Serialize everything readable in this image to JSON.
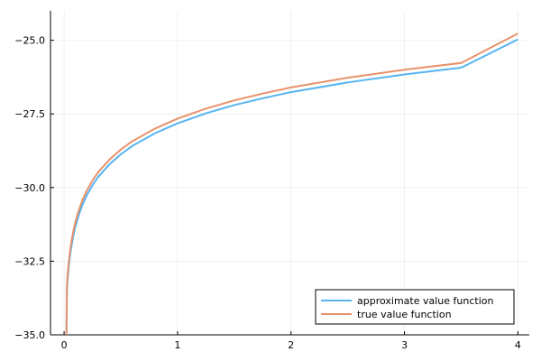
{
  "chart_data": {
    "type": "line",
    "title": "",
    "xlabel": "",
    "ylabel": "",
    "xlim": [
      -0.12,
      4.1
    ],
    "ylim": [
      -35.0,
      -24.0
    ],
    "x_ticks": [
      0,
      1,
      2,
      3,
      4
    ],
    "x_tick_labels": [
      "0",
      "1",
      "2",
      "3",
      "4"
    ],
    "y_ticks": [
      -35.0,
      -32.5,
      -30.0,
      -27.5,
      -25.0
    ],
    "y_tick_labels": [
      "−35.0",
      "−32.5",
      "−30.0",
      "−27.5",
      "−25.0"
    ],
    "grid": true,
    "legend_position": "bottom-right",
    "series": [
      {
        "name": "approximate value function",
        "color": "#56b4f0",
        "x": [
          0.02,
          0.025,
          0.03,
          0.04,
          0.05,
          0.06,
          0.08,
          0.1,
          0.13,
          0.16,
          0.2,
          0.25,
          0.3,
          0.4,
          0.5,
          0.6,
          0.8,
          1.0,
          1.25,
          1.5,
          1.75,
          2.0,
          2.5,
          3.0,
          3.5,
          4.0
        ],
        "y": [
          -35.2,
          -33.45,
          -33.17,
          -32.73,
          -32.38,
          -32.1,
          -31.66,
          -31.32,
          -30.92,
          -30.6,
          -30.26,
          -29.92,
          -29.64,
          -29.21,
          -28.87,
          -28.59,
          -28.16,
          -27.82,
          -27.48,
          -27.2,
          -26.97,
          -26.76,
          -26.43,
          -26.16,
          -25.93,
          -24.97
        ]
      },
      {
        "name": "true value function",
        "color": "#e8926c",
        "x": [
          0.02,
          0.025,
          0.03,
          0.04,
          0.05,
          0.06,
          0.08,
          0.1,
          0.13,
          0.16,
          0.2,
          0.25,
          0.3,
          0.4,
          0.5,
          0.6,
          0.8,
          1.0,
          1.25,
          1.5,
          1.75,
          2.0,
          2.5,
          3.0,
          3.5,
          4.0
        ],
        "y": [
          -35.2,
          -33.29,
          -33.01,
          -32.57,
          -32.22,
          -31.94,
          -31.5,
          -31.16,
          -30.76,
          -30.44,
          -30.1,
          -29.76,
          -29.48,
          -29.05,
          -28.71,
          -28.43,
          -28.0,
          -27.66,
          -27.32,
          -27.04,
          -26.81,
          -26.6,
          -26.27,
          -26.0,
          -25.77,
          -24.77
        ]
      }
    ]
  }
}
